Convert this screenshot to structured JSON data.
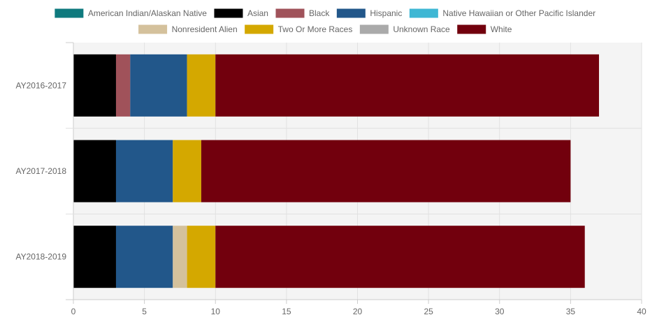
{
  "chart_data": {
    "type": "bar",
    "orientation": "horizontal",
    "stacked": true,
    "categories": [
      "AY2016-2017",
      "AY2017-2018",
      "AY2018-2019"
    ],
    "series": [
      {
        "name": "American Indian/Alaskan Native",
        "color": "#0f7a7e",
        "values": [
          0,
          0,
          0
        ]
      },
      {
        "name": "Asian",
        "color": "#000000",
        "values": [
          3,
          3,
          3
        ]
      },
      {
        "name": "Black",
        "color": "#a0525a",
        "values": [
          1,
          0,
          0
        ]
      },
      {
        "name": "Hispanic",
        "color": "#22578a",
        "values": [
          4,
          4,
          4
        ]
      },
      {
        "name": "Native Hawaiian or Other Pacific Islander",
        "color": "#3eb7d4",
        "values": [
          0,
          0,
          0
        ]
      },
      {
        "name": "Nonresident Alien",
        "color": "#d4c19c",
        "values": [
          0,
          0,
          1
        ]
      },
      {
        "name": "Two Or More Races",
        "color": "#d4a800",
        "values": [
          2,
          2,
          2
        ]
      },
      {
        "name": "Unknown Race",
        "color": "#aaaaaa",
        "values": [
          0,
          0,
          0
        ]
      },
      {
        "name": "White",
        "color": "#72000d",
        "values": [
          27,
          26,
          26
        ]
      }
    ],
    "xlim": [
      0,
      40
    ],
    "xticks": [
      0,
      5,
      10,
      15,
      20,
      25,
      30,
      35,
      40
    ],
    "grid": true,
    "legend_position": "top",
    "plot_background": "#f4f4f4"
  }
}
